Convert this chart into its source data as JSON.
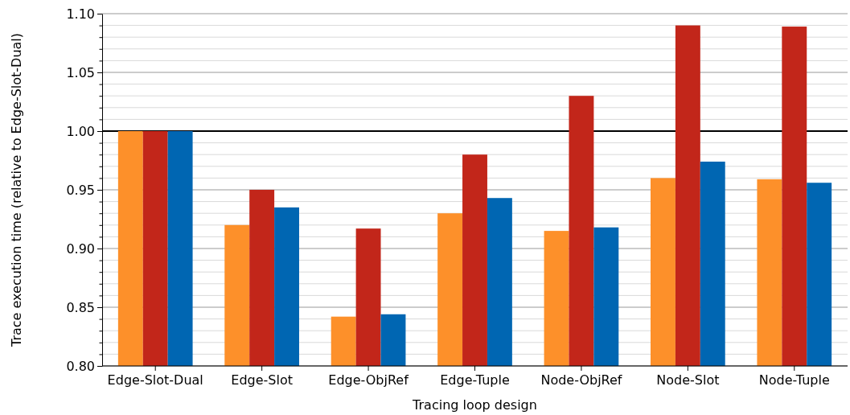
{
  "chart_data": {
    "type": "bar",
    "xlabel": "Tracing loop design",
    "ylabel": "Trace execution time (relative to Edge-Slot-Dual)",
    "categories": [
      "Edge-Slot-Dual",
      "Edge-Slot",
      "Edge-ObjRef",
      "Edge-Tuple",
      "Node-ObjRef",
      "Node-Slot",
      "Node-Tuple"
    ],
    "series": [
      {
        "color": "#fd902a",
        "values": [
          1.0,
          0.92,
          0.842,
          0.93,
          0.915,
          0.96,
          0.959
        ]
      },
      {
        "color": "#c2261a",
        "values": [
          1.0,
          0.95,
          0.917,
          0.98,
          1.03,
          1.09,
          1.089
        ]
      },
      {
        "color": "#0066b2",
        "values": [
          1.0,
          0.935,
          0.844,
          0.943,
          0.918,
          0.974,
          0.956
        ]
      }
    ],
    "ylim": [
      0.8,
      1.1
    ],
    "yticks": [
      {
        "value": 0.8,
        "label": "0.80"
      },
      {
        "value": 0.81,
        "label": null
      },
      {
        "value": 0.82,
        "label": null
      },
      {
        "value": 0.83,
        "label": null
      },
      {
        "value": 0.84,
        "label": null
      },
      {
        "value": 0.85,
        "label": "0.85"
      },
      {
        "value": 0.86,
        "label": null
      },
      {
        "value": 0.87,
        "label": null
      },
      {
        "value": 0.88,
        "label": null
      },
      {
        "value": 0.89,
        "label": null
      },
      {
        "value": 0.9,
        "label": "0.90"
      },
      {
        "value": 0.91,
        "label": null
      },
      {
        "value": 0.92,
        "label": null
      },
      {
        "value": 0.93,
        "label": null
      },
      {
        "value": 0.94,
        "label": null
      },
      {
        "value": 0.95,
        "label": "0.95"
      },
      {
        "value": 0.96,
        "label": null
      },
      {
        "value": 0.97,
        "label": null
      },
      {
        "value": 0.98,
        "label": null
      },
      {
        "value": 0.99,
        "label": null
      },
      {
        "value": 1.0,
        "label": "1.00"
      },
      {
        "value": 1.01,
        "label": null
      },
      {
        "value": 1.02,
        "label": null
      },
      {
        "value": 1.03,
        "label": null
      },
      {
        "value": 1.04,
        "label": null
      },
      {
        "value": 1.05,
        "label": "1.05"
      },
      {
        "value": 1.06,
        "label": null
      },
      {
        "value": 1.07,
        "label": null
      },
      {
        "value": 1.08,
        "label": null
      },
      {
        "value": 1.09,
        "label": null
      },
      {
        "value": 1.1,
        "label": "1.10"
      }
    ],
    "grid": "y",
    "ref_lines": [
      {
        "axis": "y",
        "value": 1.0,
        "color": "#000000"
      }
    ]
  }
}
